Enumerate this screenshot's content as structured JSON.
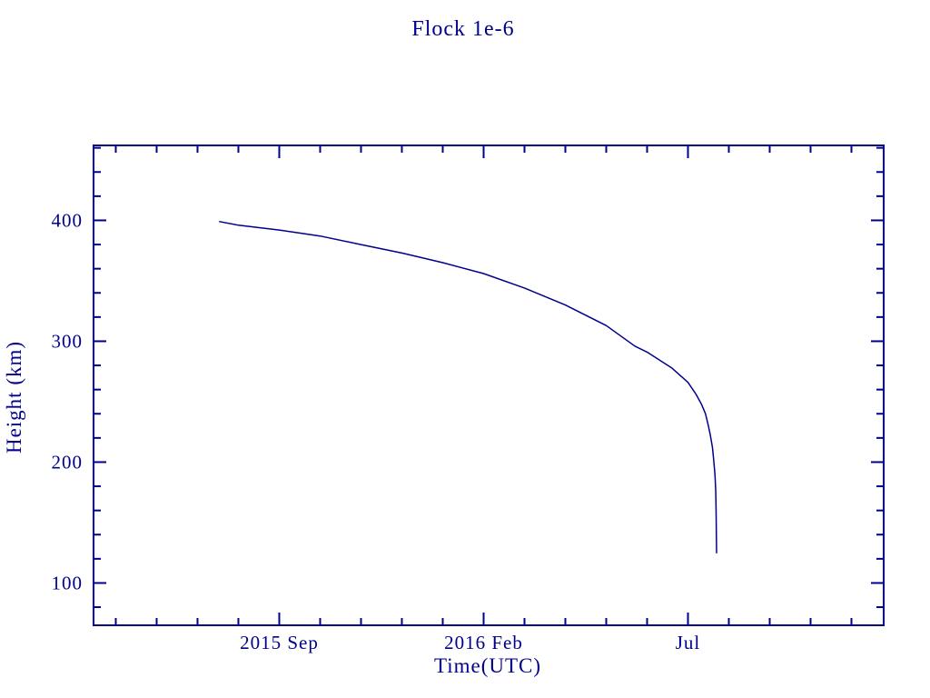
{
  "chart_data": {
    "type": "line",
    "title": "Flock 1e-6",
    "xlabel": "Time(UTC)",
    "ylabel": "Height (km)",
    "line_color": "#00008B",
    "frame_color": "#00008B",
    "background": "#FFFFFF",
    "grid": false,
    "legend": "none",
    "x_unit": "months since 2015-01-01 (e.g. 8 = 2015 Sep 1)",
    "xlim_months": [
      3.456,
      22.789
    ],
    "ylim": [
      65,
      462
    ],
    "x_ticks": {
      "major": [
        {
          "m": 8,
          "label": "2015 Sep"
        },
        {
          "m": 13,
          "label": "2016 Feb"
        },
        {
          "m": 18,
          "label": "Jul"
        }
      ],
      "minor": [
        4,
        5,
        6,
        7,
        9,
        10,
        11,
        12,
        14,
        15,
        16,
        17,
        19,
        20,
        21,
        22
      ]
    },
    "y_ticks": {
      "major": [
        {
          "value": 100,
          "label": "100"
        },
        {
          "value": 200,
          "label": "200"
        },
        {
          "value": 300,
          "label": "300"
        },
        {
          "value": 400,
          "label": "400"
        }
      ],
      "minor": [
        80,
        120,
        140,
        160,
        180,
        220,
        240,
        260,
        280,
        320,
        340,
        360,
        380,
        420,
        440,
        460
      ]
    },
    "series": [
      {
        "name": "height",
        "points_months_height": [
          [
            6.54,
            399
          ],
          [
            7.0,
            396
          ],
          [
            8.0,
            392
          ],
          [
            9.0,
            387
          ],
          [
            10.0,
            380
          ],
          [
            11.0,
            373
          ],
          [
            12.0,
            365
          ],
          [
            13.0,
            356
          ],
          [
            14.0,
            344
          ],
          [
            15.0,
            330
          ],
          [
            16.0,
            313
          ],
          [
            16.7,
            296
          ],
          [
            17.0,
            291
          ],
          [
            17.6,
            278
          ],
          [
            18.0,
            266
          ],
          [
            18.2,
            256
          ],
          [
            18.33,
            248
          ],
          [
            18.43,
            240
          ],
          [
            18.5,
            230
          ],
          [
            18.55,
            222
          ],
          [
            18.6,
            212
          ],
          [
            18.63,
            202
          ],
          [
            18.66,
            190
          ],
          [
            18.68,
            176
          ],
          [
            18.69,
            158
          ],
          [
            18.7,
            125
          ]
        ],
        "points_dates": [
          "2015-07-17",
          "2015-08-01",
          "2015-09-01",
          "2015-10-01",
          "2015-11-01",
          "2015-12-01",
          "2016-01-01",
          "2016-02-01",
          "2016-03-01",
          "2016-04-01",
          "2016-05-01",
          "2016-05-22",
          "2016-06-01",
          "2016-06-19",
          "2016-07-01",
          "2016-07-07",
          "2016-07-11",
          "2016-07-14",
          "2016-07-16",
          "2016-07-17",
          "2016-07-19",
          "2016-07-20",
          "2016-07-21",
          "2016-07-21",
          "2016-07-22",
          "2016-07-22"
        ],
        "start_height_km": 399,
        "end_height_km": 125
      }
    ]
  }
}
